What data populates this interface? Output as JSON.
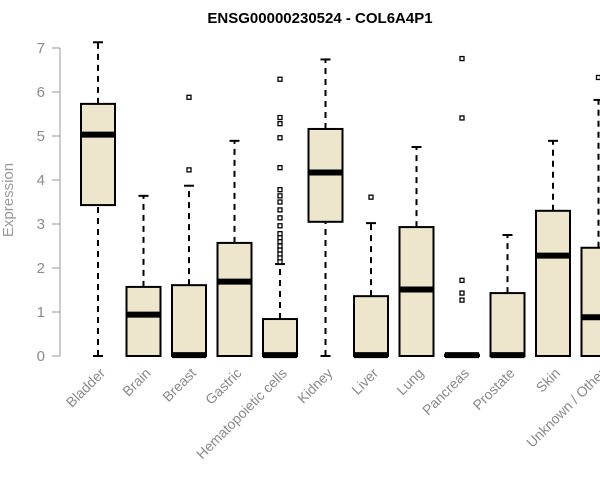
{
  "chart_data": {
    "type": "boxplot",
    "title": "ENSG00000230524 - COL6A4P1",
    "xlabel": "",
    "ylabel": "Expression",
    "ylim": [
      0,
      7
    ],
    "yticks": [
      0,
      1,
      2,
      3,
      4,
      5,
      6,
      7
    ],
    "grid": false,
    "legend": "none",
    "colors": {
      "box_fill": "#ede6cc",
      "stroke": "#000000",
      "axis": "#9a9a9a",
      "tick_label": "#8a8a8a"
    },
    "categories": [
      "Bladder",
      "Brain",
      "Breast",
      "Gastric",
      "Hematopoietic cells",
      "Kidney",
      "Liver",
      "Lung",
      "Pancreas",
      "Prostate",
      "Skin",
      "Unknown / Other"
    ],
    "boxes": [
      {
        "category": "Bladder",
        "whisker_low": 0,
        "q1": 3.43,
        "median": 5.03,
        "q3": 5.73,
        "whisker_high": 7.13,
        "outliers": []
      },
      {
        "category": "Brain",
        "whisker_low": 0,
        "q1": 0,
        "median": 0.94,
        "q3": 1.57,
        "whisker_high": 3.64,
        "outliers": []
      },
      {
        "category": "Breast",
        "whisker_low": 0,
        "q1": 0,
        "median": 0.02,
        "q3": 1.61,
        "whisker_high": 3.87,
        "outliers": [
          4.23,
          5.88
        ]
      },
      {
        "category": "Gastric",
        "whisker_low": 0,
        "q1": 0,
        "median": 1.69,
        "q3": 2.57,
        "whisker_high": 4.89,
        "outliers": []
      },
      {
        "category": "Hematopoietic cells",
        "whisker_low": 0,
        "q1": 0,
        "median": 0.02,
        "q3": 0.84,
        "whisker_high": 2.09,
        "outliers": [
          2.14,
          2.23,
          2.32,
          2.41,
          2.5,
          2.6,
          2.69,
          2.78,
          2.96,
          3.14,
          3.32,
          3.5,
          3.64,
          3.78,
          4.28,
          4.96,
          5.28,
          5.42,
          6.29
        ]
      },
      {
        "category": "Kidney",
        "whisker_low": 0,
        "q1": 3.05,
        "median": 4.17,
        "q3": 5.16,
        "whisker_high": 6.74,
        "outliers": []
      },
      {
        "category": "Liver",
        "whisker_low": 0,
        "q1": 0,
        "median": 0.02,
        "q3": 1.36,
        "whisker_high": 3.02,
        "outliers": [
          3.61
        ]
      },
      {
        "category": "Lung",
        "whisker_low": 0,
        "q1": 0,
        "median": 1.51,
        "q3": 2.93,
        "whisker_high": 4.75,
        "outliers": []
      },
      {
        "category": "Pancreas",
        "whisker_low": 0,
        "q1": 0,
        "median": 0.02,
        "q3": 0.03,
        "whisker_high": 0.03,
        "outliers": [
          1.27,
          1.43,
          1.72,
          5.41,
          6.76
        ]
      },
      {
        "category": "Prostate",
        "whisker_low": 0,
        "q1": 0,
        "median": 0.02,
        "q3": 1.43,
        "whisker_high": 2.75,
        "outliers": []
      },
      {
        "category": "Skin",
        "whisker_low": 0,
        "q1": 0,
        "median": 2.28,
        "q3": 3.3,
        "whisker_high": 4.89,
        "outliers": []
      },
      {
        "category": "Unknown / Other",
        "whisker_low": 0,
        "q1": 0,
        "median": 0.88,
        "q3": 2.46,
        "whisker_high": 5.82,
        "outliers": [
          6.33
        ]
      }
    ]
  }
}
